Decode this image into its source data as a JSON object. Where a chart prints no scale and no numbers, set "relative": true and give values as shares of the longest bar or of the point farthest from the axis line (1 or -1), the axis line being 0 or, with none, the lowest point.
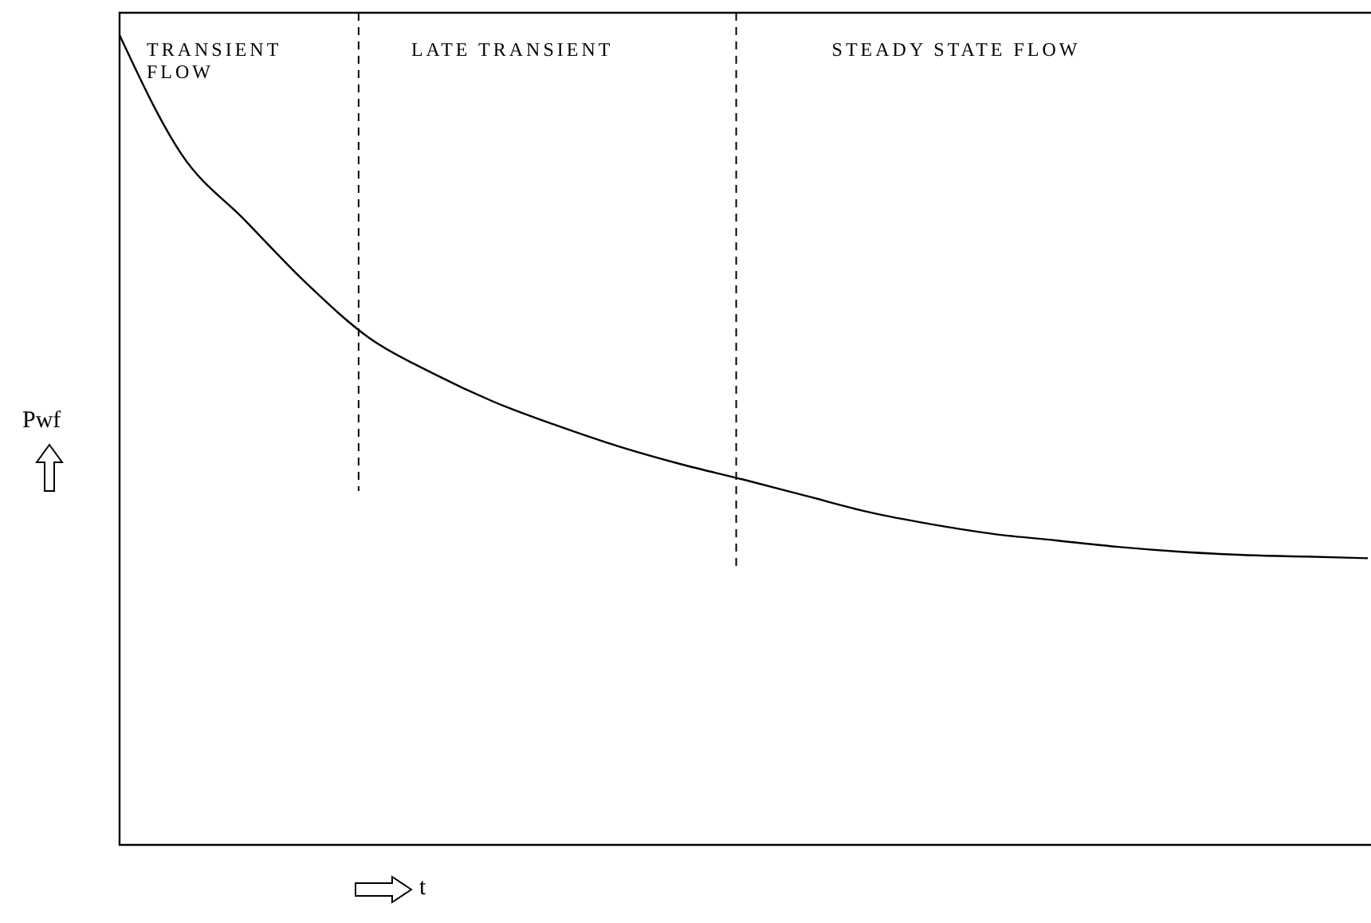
{
  "chart_data": {
    "type": "line",
    "relative": true,
    "xlabel": "t",
    "ylabel": "Pwf",
    "categories": [
      null,
      null,
      null,
      null,
      null,
      null,
      null,
      null,
      null,
      null,
      null,
      null,
      null,
      null,
      null,
      null,
      null,
      null,
      null,
      null,
      null
    ],
    "series": [
      {
        "color": "#000000",
        "values": [
          1.0,
          0.852,
          0.772,
          0.693,
          0.626,
          0.583,
          0.547,
          0.518,
          0.492,
          0.47,
          0.451,
          0.431,
          0.411,
          0.396,
          0.384,
          0.376,
          0.368,
          0.362,
          0.358,
          0.356,
          0.354
        ]
      }
    ],
    "annotations": [
      "TRANSIENT FLOW",
      "LATE TRANSIENT",
      "STEADY STATE FLOW"
    ],
    "marker": "none",
    "line_style": "solid"
  }
}
